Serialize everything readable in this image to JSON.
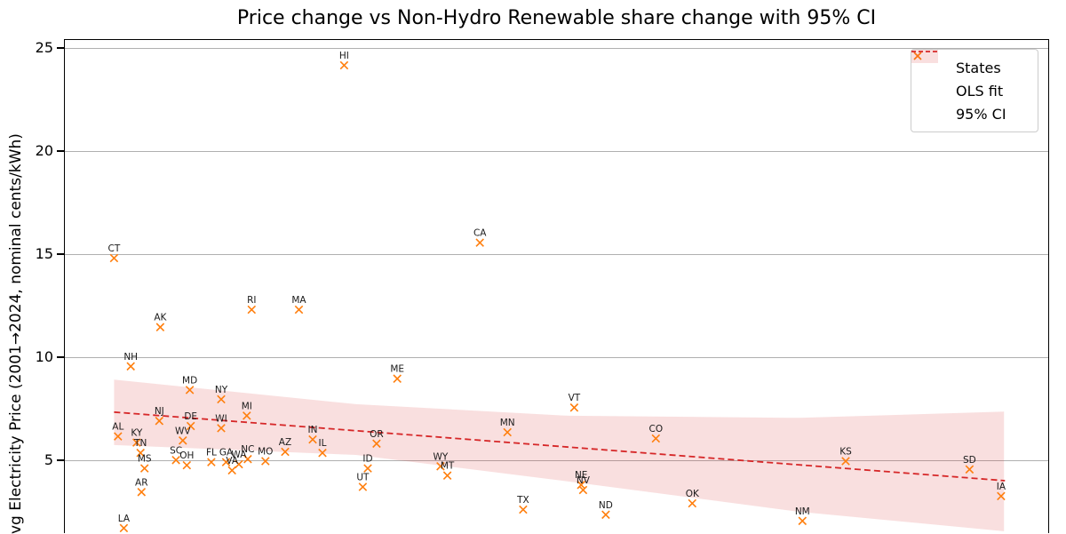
{
  "chart_data": {
    "type": "scatter",
    "title": "Price change vs Non-Hydro Renewable share change with 95% CI",
    "ylabel": "vg Electricity Price (2001→2024, nominal cents/kWh)",
    "xlabel": "",
    "x_axis_note": "x-axis tick labels are cropped below the visible area; x values given as fraction of plot width",
    "yticks": [
      25,
      20,
      15,
      10,
      5
    ],
    "ylim_visible": [
      1.47,
      25.43
    ],
    "grid": "horizontal",
    "legend_position": "upper right",
    "legend_entries": [
      {
        "label": "States",
        "kind": "x-marker"
      },
      {
        "label": "OLS fit",
        "kind": "dashed-line"
      },
      {
        "label": "95% CI",
        "kind": "filled-patch"
      }
    ],
    "colors": {
      "marker": "#ff7f0e",
      "ols_line": "#d62728",
      "ci_fill": "rgba(214,39,40,0.15)",
      "gridline": "#b0b0b0",
      "spine": "#000000"
    },
    "ols_fit": {
      "x_start": 0.05,
      "y_start": 7.38,
      "x_end": 0.956,
      "y_end": 4.05
    },
    "ci_upper": [
      [
        0.05,
        8.95
      ],
      [
        0.296,
        7.76
      ],
      [
        0.512,
        7.2
      ],
      [
        0.747,
        7.1
      ],
      [
        0.955,
        7.4
      ]
    ],
    "ci_lower": [
      [
        0.05,
        5.78
      ],
      [
        0.296,
        5.3
      ],
      [
        0.512,
        4.01
      ],
      [
        0.747,
        2.54
      ],
      [
        0.955,
        1.6
      ]
    ],
    "points": [
      {
        "state": "HI",
        "x": 0.284,
        "y": 24.2
      },
      {
        "state": "CA",
        "x": 0.422,
        "y": 15.6
      },
      {
        "state": "CT",
        "x": 0.05,
        "y": 14.85
      },
      {
        "state": "RI",
        "x": 0.19,
        "y": 12.35
      },
      {
        "state": "MA",
        "x": 0.238,
        "y": 12.35
      },
      {
        "state": "AK",
        "x": 0.097,
        "y": 11.5
      },
      {
        "state": "NH",
        "x": 0.067,
        "y": 9.6
      },
      {
        "state": "ME",
        "x": 0.338,
        "y": 9.0
      },
      {
        "state": "MD",
        "x": 0.127,
        "y": 8.45
      },
      {
        "state": "NY",
        "x": 0.159,
        "y": 8.0
      },
      {
        "state": "VT",
        "x": 0.518,
        "y": 7.6
      },
      {
        "state": "MI",
        "x": 0.185,
        "y": 7.2
      },
      {
        "state": "NJ",
        "x": 0.096,
        "y": 6.95
      },
      {
        "state": "DE",
        "x": 0.128,
        "y": 6.7
      },
      {
        "state": "WI",
        "x": 0.159,
        "y": 6.6
      },
      {
        "state": "MN",
        "x": 0.45,
        "y": 6.4
      },
      {
        "state": "AL",
        "x": 0.054,
        "y": 6.2
      },
      {
        "state": "CO",
        "x": 0.601,
        "y": 6.1
      },
      {
        "state": "IN",
        "x": 0.252,
        "y": 6.05
      },
      {
        "state": "WV",
        "x": 0.12,
        "y": 6.0
      },
      {
        "state": "KY",
        "x": 0.073,
        "y": 5.9
      },
      {
        "state": "OR",
        "x": 0.317,
        "y": 5.85
      },
      {
        "state": "AZ",
        "x": 0.224,
        "y": 5.45
      },
      {
        "state": "IL",
        "x": 0.262,
        "y": 5.4
      },
      {
        "state": "TN",
        "x": 0.077,
        "y": 5.4
      },
      {
        "state": "NC",
        "x": 0.186,
        "y": 5.1
      },
      {
        "state": "SC",
        "x": 0.113,
        "y": 5.05
      },
      {
        "state": "MO",
        "x": 0.204,
        "y": 5.0
      },
      {
        "state": "KS",
        "x": 0.794,
        "y": 5.0
      },
      {
        "state": "FL",
        "x": 0.149,
        "y": 4.95
      },
      {
        "state": "GA",
        "x": 0.164,
        "y": 4.95
      },
      {
        "state": "WA",
        "x": 0.177,
        "y": 4.85
      },
      {
        "state": "OH",
        "x": 0.124,
        "y": 4.8
      },
      {
        "state": "WY",
        "x": 0.382,
        "y": 4.75
      },
      {
        "state": "MS",
        "x": 0.081,
        "y": 4.65
      },
      {
        "state": "ID",
        "x": 0.308,
        "y": 4.65
      },
      {
        "state": "SD",
        "x": 0.92,
        "y": 4.6
      },
      {
        "state": "VA",
        "x": 0.17,
        "y": 4.55
      },
      {
        "state": "MT",
        "x": 0.389,
        "y": 4.3
      },
      {
        "state": "NE",
        "x": 0.525,
        "y": 3.85
      },
      {
        "state": "UT",
        "x": 0.303,
        "y": 3.75
      },
      {
        "state": "NV",
        "x": 0.527,
        "y": 3.6
      },
      {
        "state": "AR",
        "x": 0.078,
        "y": 3.5
      },
      {
        "state": "IA",
        "x": 0.952,
        "y": 3.3
      },
      {
        "state": "OK",
        "x": 0.638,
        "y": 2.95
      },
      {
        "state": "TX",
        "x": 0.466,
        "y": 2.65
      },
      {
        "state": "ND",
        "x": 0.55,
        "y": 2.4
      },
      {
        "state": "NM",
        "x": 0.75,
        "y": 2.1
      },
      {
        "state": "LA",
        "x": 0.06,
        "y": 1.75
      }
    ]
  }
}
